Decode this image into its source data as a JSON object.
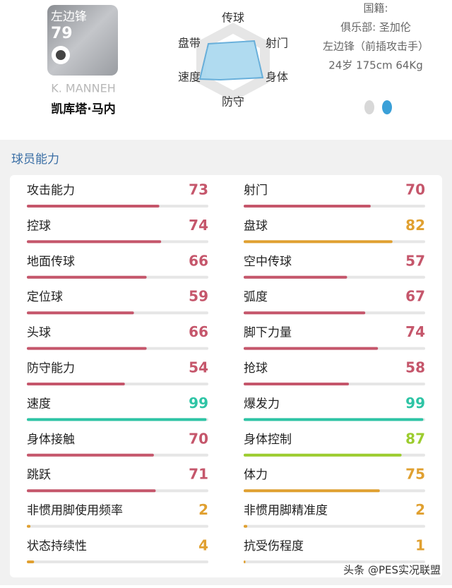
{
  "header": {
    "position": "左边锋",
    "rating": "79",
    "name_en": "K. MANNEH",
    "name_cn": "凯库塔·马内"
  },
  "radar_labels": [
    "传球",
    "射门",
    "身体",
    "防守",
    "速度",
    "盘带"
  ],
  "info": [
    "国籍:",
    "俱乐部: 圣加伦",
    "左边锋（前插攻击手）",
    "24岁 175cm 64Kg"
  ],
  "section_title": "球员能力",
  "stats_left": [
    {
      "label": "攻击能力",
      "value": 73,
      "color": "#c5566b"
    },
    {
      "label": "控球",
      "value": 74,
      "color": "#c5566b"
    },
    {
      "label": "地面传球",
      "value": 66,
      "color": "#c5566b"
    },
    {
      "label": "定位球",
      "value": 59,
      "color": "#c5566b"
    },
    {
      "label": "头球",
      "value": 66,
      "color": "#c5566b"
    },
    {
      "label": "防守能力",
      "value": 54,
      "color": "#c5566b"
    },
    {
      "label": "速度",
      "value": 99,
      "color": "#2ec4a5"
    },
    {
      "label": "身体接触",
      "value": 70,
      "color": "#c5566b"
    },
    {
      "label": "跳跃",
      "value": 71,
      "color": "#c5566b"
    },
    {
      "label": "非惯用脚使用频率",
      "value": 2,
      "color": "#e0a030"
    },
    {
      "label": "状态持续性",
      "value": 4,
      "color": "#e0a030"
    }
  ],
  "stats_right": [
    {
      "label": "射门",
      "value": 70,
      "color": "#c5566b"
    },
    {
      "label": "盘球",
      "value": 82,
      "color": "#e0a030"
    },
    {
      "label": "空中传球",
      "value": 57,
      "color": "#c5566b"
    },
    {
      "label": "弧度",
      "value": 67,
      "color": "#c5566b"
    },
    {
      "label": "脚下力量",
      "value": 74,
      "color": "#c5566b"
    },
    {
      "label": "抢球",
      "value": 58,
      "color": "#c5566b"
    },
    {
      "label": "爆发力",
      "value": 99,
      "color": "#2ec4a5"
    },
    {
      "label": "身体控制",
      "value": 87,
      "color": "#9ccc2e"
    },
    {
      "label": "体力",
      "value": 75,
      "color": "#e0a030"
    },
    {
      "label": "非惯用脚精准度",
      "value": 2,
      "color": "#e0a030"
    },
    {
      "label": "抗受伤程度",
      "value": 1,
      "color": "#e0a030"
    }
  ],
  "watermark": "头条 @PES实况联盟"
}
